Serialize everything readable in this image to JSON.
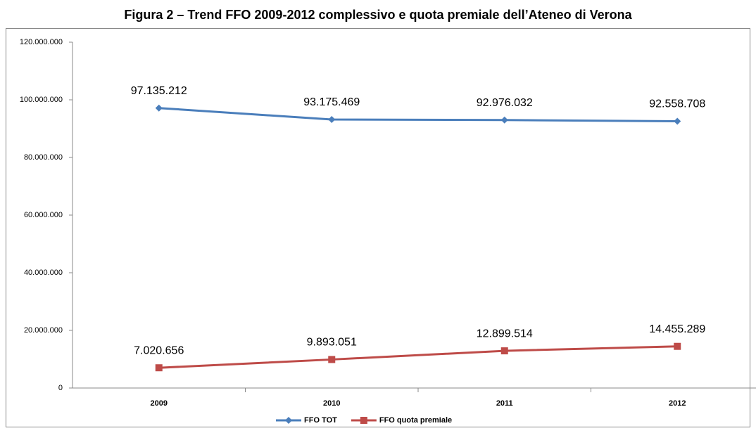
{
  "chart_data": {
    "type": "line",
    "title": "Figura 2 – Trend FFO 2009-2012 complessivo e quota premiale dell’Ateneo di Verona",
    "categories": [
      "2009",
      "2010",
      "2011",
      "2012"
    ],
    "series": [
      {
        "name": "FFO TOT",
        "color": "#4a7ebb",
        "marker": "diamond",
        "values": [
          97135212,
          93175469,
          92976032,
          92558708
        ],
        "value_labels": [
          "97.135.212",
          "93.175.469",
          "92.976.032",
          "92.558.708"
        ]
      },
      {
        "name": "FFO quota premiale",
        "color": "#be4b48",
        "marker": "square",
        "values": [
          7020656,
          9893051,
          12899514,
          14455289
        ],
        "value_labels": [
          "7.020.656",
          "9.893.051",
          "12.899.514",
          "14.455.289"
        ]
      }
    ],
    "ylim": [
      0,
      120000000
    ],
    "yticks": [
      0,
      {
        "value": 20000000,
        "label": "20.000.000"
      },
      {
        "value": 40000000,
        "label": "40.000.000"
      },
      {
        "value": 60000000,
        "label": "60.000.000"
      },
      {
        "value": 80000000,
        "label": "80.000.000"
      },
      {
        "value": 100000000,
        "label": "100.000.000"
      },
      {
        "value": 120000000,
        "label": "120.000.000"
      }
    ],
    "grid": false,
    "legend": "bottom"
  }
}
